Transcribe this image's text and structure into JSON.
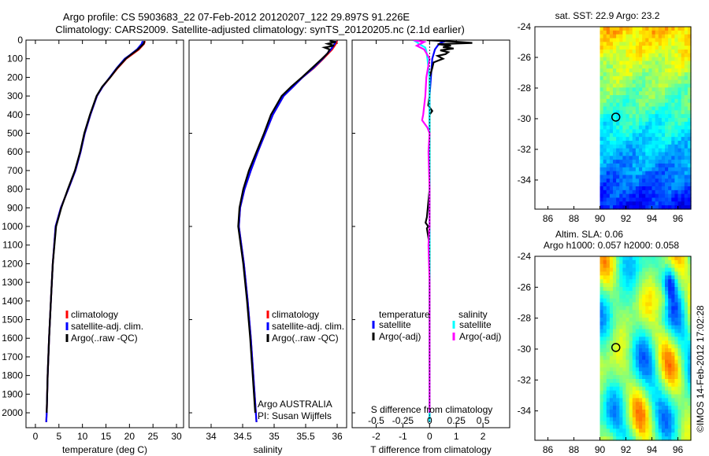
{
  "header": {
    "line1": "Argo profile: CS 5903683_22 07-Feb-2012 20120207_122 29.897S 91.226E",
    "line2": "Climatology: CARS2009. Satellite-adjusted climatology: synTS_20120205.nc (2.1d earlier)"
  },
  "credit": "©IMOS 14-Feb-2012 17:02:28",
  "colors": {
    "clim": "#ff0000",
    "sat": "#0000ff",
    "argo": "#000000",
    "sal_sat": "#00ffff",
    "sal_argo": "#ff00ff"
  },
  "chart_data": [
    {
      "type": "line",
      "id": "temp",
      "xlabel": "temperature (deg C)",
      "ylabel": "",
      "xlim": [
        -2,
        31.5
      ],
      "ylim": [
        2080,
        0
      ],
      "xticks": [
        0,
        5,
        10,
        15,
        20,
        25,
        30
      ],
      "yticks": [
        0,
        100,
        200,
        300,
        400,
        500,
        600,
        700,
        800,
        900,
        1000,
        1100,
        1200,
        1300,
        1400,
        1500,
        1600,
        1700,
        1800,
        1900,
        2000
      ],
      "legend": [
        "climatology",
        "satellite-adj. clim.",
        "Argo(..raw -QC)"
      ],
      "legend_position": "lower-middle",
      "series": [
        {
          "name": "climatology",
          "depth": [
            5,
            20,
            50,
            80,
            100,
            150,
            200,
            250,
            300,
            400,
            500,
            600,
            700,
            800,
            900,
            1000,
            1200,
            1400,
            1600,
            1800,
            2000,
            2050
          ],
          "values": [
            23.3,
            23.1,
            22.0,
            20.4,
            19.3,
            17.5,
            15.9,
            14.3,
            13.1,
            11.7,
            10.5,
            9.6,
            8.5,
            7.0,
            5.4,
            4.3,
            3.7,
            3.3,
            2.9,
            2.6,
            2.4,
            2.3
          ]
        },
        {
          "name": "satellite-adj. clim.",
          "depth": [
            5,
            20,
            50,
            80,
            100,
            150,
            200,
            250,
            300,
            400,
            500,
            600,
            700,
            800,
            900,
            1000,
            1200,
            1400,
            1600,
            1800,
            2000,
            2050
          ],
          "values": [
            22.8,
            22.6,
            21.6,
            20.1,
            19.0,
            17.3,
            15.8,
            14.3,
            13.1,
            11.7,
            10.5,
            9.6,
            8.5,
            7.0,
            5.4,
            4.3,
            3.7,
            3.3,
            2.9,
            2.6,
            2.4,
            2.3
          ]
        },
        {
          "name": "Argo(..raw -QC)",
          "depth": [
            5,
            20,
            50,
            80,
            100,
            150,
            200,
            250,
            300,
            400,
            500,
            600,
            700,
            800,
            900,
            1000,
            1200,
            1400,
            1600,
            1800,
            2000
          ],
          "values": [
            23.2,
            23.0,
            21.8,
            20.2,
            19.2,
            17.4,
            15.9,
            14.2,
            13.0,
            11.6,
            10.4,
            9.5,
            8.4,
            6.9,
            5.5,
            4.4,
            3.7,
            3.3,
            2.9,
            2.6,
            2.4
          ]
        }
      ]
    },
    {
      "type": "line",
      "id": "sal",
      "xlabel": "salinity",
      "ylabel": "",
      "xlim": [
        33.65,
        36.15
      ],
      "ylim": [
        2080,
        0
      ],
      "xticks": [
        34,
        34.5,
        35,
        35.5,
        36
      ],
      "legend": [
        "climatology",
        "satellite-adj. clim.",
        "Argo(..raw -QC)"
      ],
      "legend_position": "lower-middle",
      "annotation": [
        "Argo AUSTRALIA",
        "PI: Susan Wijffels"
      ],
      "series": [
        {
          "name": "climatology",
          "depth": [
            5,
            20,
            50,
            100,
            150,
            200,
            250,
            300,
            400,
            500,
            600,
            700,
            800,
            900,
            1000,
            1100,
            1200,
            1400,
            1600,
            1800,
            2000,
            2050
          ],
          "values": [
            36.0,
            35.98,
            35.92,
            35.78,
            35.63,
            35.45,
            35.3,
            35.15,
            34.98,
            34.86,
            34.74,
            34.63,
            34.53,
            34.46,
            34.44,
            34.48,
            34.52,
            34.58,
            34.63,
            34.67,
            34.71,
            34.72
          ]
        },
        {
          "name": "satellite-adj. clim.",
          "depth": [
            5,
            20,
            50,
            100,
            150,
            200,
            250,
            300,
            400,
            500,
            600,
            700,
            800,
            900,
            1000,
            1100,
            1200,
            1400,
            1600,
            1800,
            2000,
            2050
          ],
          "values": [
            35.98,
            35.96,
            35.9,
            35.77,
            35.62,
            35.45,
            35.3,
            35.15,
            34.98,
            34.86,
            34.74,
            34.63,
            34.53,
            34.46,
            34.44,
            34.48,
            34.52,
            34.58,
            34.63,
            34.67,
            34.71,
            34.72
          ]
        },
        {
          "name": "Argo(..raw -QC)",
          "depth": [
            5,
            10,
            20,
            30,
            40,
            50,
            70,
            100,
            150,
            200,
            250,
            300,
            400,
            500,
            600,
            700,
            800,
            900,
            1000,
            1100,
            1200,
            1400,
            1600,
            1800,
            2000
          ],
          "values": [
            35.88,
            35.98,
            35.85,
            35.95,
            35.8,
            35.88,
            35.85,
            35.76,
            35.6,
            35.44,
            35.27,
            35.12,
            34.95,
            34.84,
            34.72,
            34.6,
            34.51,
            34.45,
            34.43,
            34.47,
            34.51,
            34.57,
            34.62,
            34.66,
            34.7
          ]
        }
      ]
    },
    {
      "type": "line",
      "id": "diff",
      "xlabel": "T difference from climatology",
      "ylabel": "",
      "x2label": "S difference from climatology",
      "xlim": [
        -2.9,
        3.0
      ],
      "ylim": [
        2080,
        0
      ],
      "xticks": [
        -2,
        -1,
        0,
        1,
        2
      ],
      "x2ticks": [
        -0.5,
        -0.25,
        0,
        0.25,
        0.5
      ],
      "legend_titles": [
        "temperature",
        "salinity"
      ],
      "legend": [
        "satellite",
        "Argo(-adj)",
        "satellite",
        "Argo(-adj)"
      ],
      "series": [
        {
          "name": "temperature satellite",
          "depth": [
            0,
            5,
            15,
            30,
            50,
            100,
            200,
            300,
            2050
          ],
          "values": [
            0.5,
            0.6,
            0.4,
            0.3,
            0.2,
            0.1,
            0.05,
            0,
            0
          ]
        },
        {
          "name": "temperature Argo(-adj)",
          "depth": [
            0,
            8,
            15,
            22,
            30,
            38,
            45,
            55,
            65,
            75,
            85,
            100,
            120,
            150,
            200,
            300,
            350,
            380,
            400,
            500,
            800,
            950,
            980,
            1000,
            1010,
            1100,
            1500,
            2000
          ],
          "values": [
            -0.1,
            0.9,
            1.6,
            0.3,
            0.8,
            0.5,
            0.9,
            0.4,
            0.7,
            0.6,
            0.3,
            0.5,
            0.15,
            0.1,
            0,
            0,
            -0.05,
            0.1,
            0,
            0,
            0,
            -0.1,
            -0.15,
            -0.05,
            -0.1,
            0,
            0,
            0
          ]
        },
        {
          "name": "salinity satellite",
          "depth": [
            0,
            10,
            20,
            40,
            60,
            100,
            150,
            200,
            300,
            400,
            500,
            1000,
            2050
          ],
          "values": [
            -0.15,
            -0.12,
            -0.1,
            -0.04,
            -0.03,
            -0.02,
            -0.01,
            0,
            0,
            0,
            0,
            0,
            0
          ]
        },
        {
          "name": "salinity Argo(-adj)",
          "depth": [
            0,
            10,
            30,
            50,
            80,
            100,
            200,
            300,
            400,
            430,
            470,
            500,
            600,
            800,
            1000,
            1100,
            1300,
            1500,
            2000
          ],
          "values": [
            -0.15,
            -0.05,
            -0.12,
            -0.05,
            -0.02,
            0,
            -0.03,
            -0.04,
            -0.06,
            -0.07,
            -0.02,
            0,
            -0.01,
            0,
            0,
            -0.01,
            0,
            0,
            0
          ]
        }
      ]
    },
    {
      "type": "heatmap",
      "id": "sst",
      "title": "sat. SST: 22.9 Argo: 23.2",
      "xlim": [
        85,
        97
      ],
      "ylim": [
        -35.9,
        -24
      ],
      "xticks": [
        86,
        88,
        90,
        92,
        94,
        96
      ],
      "yticks": [
        -24,
        -26,
        -28,
        -30,
        -32,
        -34
      ],
      "data_xlim": [
        90,
        97
      ],
      "marker": {
        "lon": 91.226,
        "lat": -29.897
      }
    },
    {
      "type": "heatmap",
      "id": "sla",
      "title": "Altim. SLA: 0.06",
      "subtitle": "Argo h1000: 0.057 h2000: 0.058",
      "xlim": [
        85,
        97
      ],
      "ylim": [
        -35.9,
        -24
      ],
      "xticks": [
        86,
        88,
        90,
        92,
        94,
        96
      ],
      "yticks": [
        -24,
        -26,
        -28,
        -30,
        -32,
        -34
      ],
      "data_xlim": [
        90,
        97
      ],
      "marker": {
        "lon": 91.226,
        "lat": -29.897
      }
    }
  ]
}
